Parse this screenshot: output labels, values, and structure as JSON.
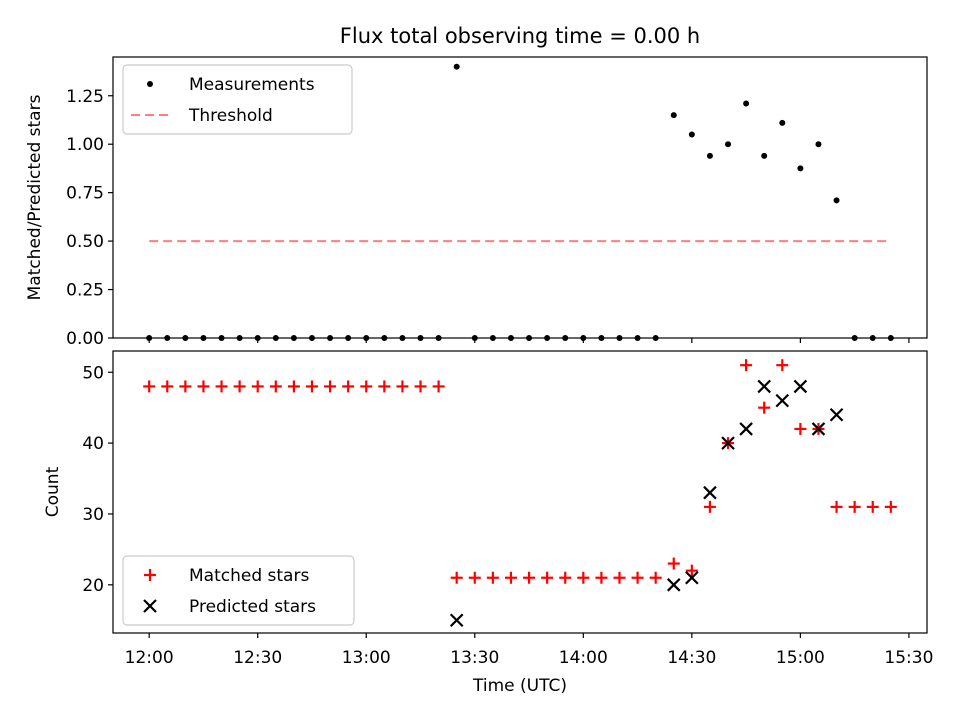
{
  "chart_data": [
    {
      "type": "scatter",
      "title": "Flux total observing time = 0.00 h",
      "ylabel": "Matched/Predicted stars",
      "xlabel": "",
      "ylim": [
        0,
        1.45
      ],
      "x_range": [
        "11:50",
        "15:35"
      ],
      "yticks": [
        0,
        0.25,
        0.5,
        0.75,
        1.0,
        1.25
      ],
      "ytick_labels": [
        "0.00",
        "0.25",
        "0.50",
        "0.75",
        "1.00",
        "1.25"
      ],
      "legend_position": "top-left",
      "series": [
        {
          "name": "Measurements",
          "marker": "dot",
          "color": "#000000",
          "points": [
            [
              "12:00",
              0
            ],
            [
              "12:05",
              0
            ],
            [
              "12:10",
              0
            ],
            [
              "12:15",
              0
            ],
            [
              "12:20",
              0
            ],
            [
              "12:25",
              0
            ],
            [
              "12:30",
              0
            ],
            [
              "12:35",
              0
            ],
            [
              "12:40",
              0
            ],
            [
              "12:45",
              0
            ],
            [
              "12:50",
              0
            ],
            [
              "12:55",
              0
            ],
            [
              "13:00",
              0
            ],
            [
              "13:05",
              0
            ],
            [
              "13:10",
              0
            ],
            [
              "13:15",
              0
            ],
            [
              "13:20",
              0
            ],
            [
              "13:25",
              1.4
            ],
            [
              "13:30",
              0
            ],
            [
              "13:35",
              0
            ],
            [
              "13:40",
              0
            ],
            [
              "13:45",
              0
            ],
            [
              "13:50",
              0
            ],
            [
              "13:55",
              0
            ],
            [
              "14:00",
              0
            ],
            [
              "14:05",
              0
            ],
            [
              "14:10",
              0
            ],
            [
              "14:15",
              0
            ],
            [
              "14:20",
              0
            ],
            [
              "14:25",
              1.15
            ],
            [
              "14:30",
              1.05
            ],
            [
              "14:35",
              0.94
            ],
            [
              "14:40",
              1.0
            ],
            [
              "14:45",
              1.21
            ],
            [
              "14:50",
              0.94
            ],
            [
              "14:55",
              1.11
            ],
            [
              "15:00",
              0.875
            ],
            [
              "15:05",
              1.0
            ],
            [
              "15:10",
              0.71
            ],
            [
              "15:15",
              0
            ],
            [
              "15:20",
              0
            ],
            [
              "15:25",
              0
            ]
          ]
        },
        {
          "name": "Threshold",
          "marker": "dashed-line",
          "color": "#ff7f7f",
          "points": [
            [
              "12:00",
              0.5
            ],
            [
              "15:25",
              0.5
            ]
          ]
        }
      ]
    },
    {
      "type": "scatter",
      "title": "",
      "ylabel": "Count",
      "xlabel": "Time (UTC)",
      "ylim": [
        13.2,
        53
      ],
      "x_range": [
        "11:50",
        "15:35"
      ],
      "xticks": [
        "12:00",
        "12:30",
        "13:00",
        "13:30",
        "14:00",
        "14:30",
        "15:00",
        "15:30"
      ],
      "yticks": [
        20,
        30,
        40,
        50
      ],
      "ytick_labels": [
        "20",
        "30",
        "40",
        "50"
      ],
      "legend_position": "bottom-left",
      "series": [
        {
          "name": "Matched stars",
          "marker": "plus",
          "color": "#ff0000",
          "points": [
            [
              "12:00",
              48
            ],
            [
              "12:05",
              48
            ],
            [
              "12:10",
              48
            ],
            [
              "12:15",
              48
            ],
            [
              "12:20",
              48
            ],
            [
              "12:25",
              48
            ],
            [
              "12:30",
              48
            ],
            [
              "12:35",
              48
            ],
            [
              "12:40",
              48
            ],
            [
              "12:45",
              48
            ],
            [
              "12:50",
              48
            ],
            [
              "12:55",
              48
            ],
            [
              "13:00",
              48
            ],
            [
              "13:05",
              48
            ],
            [
              "13:10",
              48
            ],
            [
              "13:15",
              48
            ],
            [
              "13:20",
              48
            ],
            [
              "13:25",
              21
            ],
            [
              "13:30",
              21
            ],
            [
              "13:35",
              21
            ],
            [
              "13:40",
              21
            ],
            [
              "13:45",
              21
            ],
            [
              "13:50",
              21
            ],
            [
              "13:55",
              21
            ],
            [
              "14:00",
              21
            ],
            [
              "14:05",
              21
            ],
            [
              "14:10",
              21
            ],
            [
              "14:15",
              21
            ],
            [
              "14:20",
              21
            ],
            [
              "14:25",
              23
            ],
            [
              "14:30",
              22
            ],
            [
              "14:35",
              31
            ],
            [
              "14:40",
              40
            ],
            [
              "14:45",
              51
            ],
            [
              "14:50",
              45
            ],
            [
              "14:55",
              51
            ],
            [
              "15:00",
              42
            ],
            [
              "15:05",
              42
            ],
            [
              "15:10",
              31
            ],
            [
              "15:15",
              31
            ],
            [
              "15:20",
              31
            ],
            [
              "15:25",
              31
            ]
          ]
        },
        {
          "name": "Predicted stars",
          "marker": "x",
          "color": "#000000",
          "points": [
            [
              "13:25",
              15
            ],
            [
              "14:25",
              20
            ],
            [
              "14:30",
              21
            ],
            [
              "14:35",
              33
            ],
            [
              "14:40",
              40
            ],
            [
              "14:45",
              42
            ],
            [
              "14:50",
              48
            ],
            [
              "14:55",
              46
            ],
            [
              "15:00",
              48
            ],
            [
              "15:05",
              42
            ],
            [
              "15:10",
              44
            ]
          ]
        }
      ]
    }
  ]
}
